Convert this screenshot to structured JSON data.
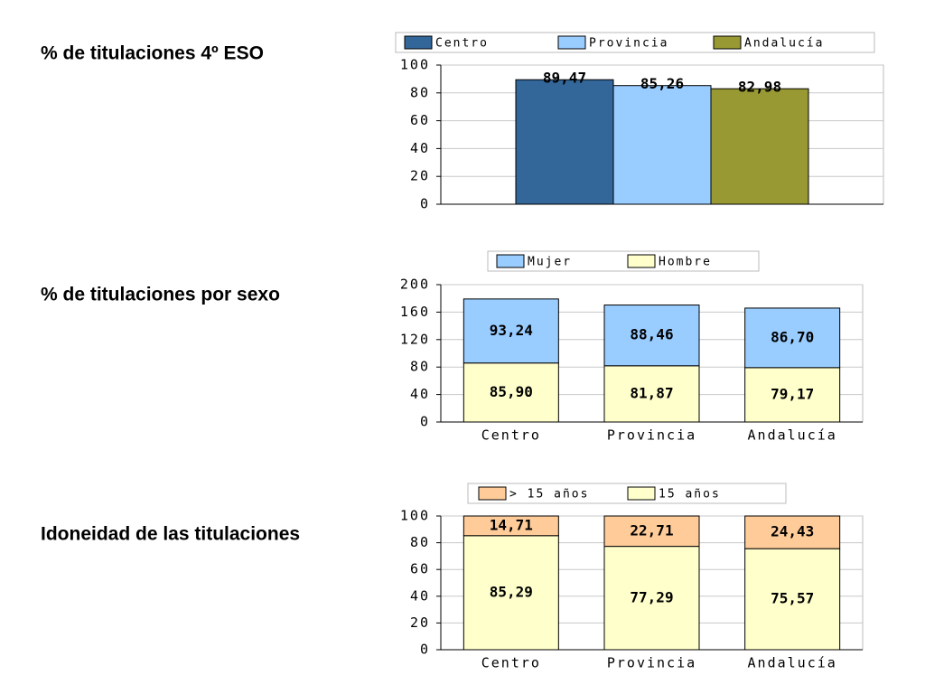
{
  "chart_data": [
    {
      "type": "bar",
      "title": "% de titulaciones 4º ESO",
      "categories": [
        null
      ],
      "series": [
        {
          "name": "Centro",
          "color": "#336699",
          "values": [
            89.47
          ],
          "value_labels": [
            "89,47"
          ]
        },
        {
          "name": "Provincia",
          "color": "#99ccff",
          "values": [
            85.26
          ],
          "value_labels": [
            "85,26"
          ]
        },
        {
          "name": "Andalucía",
          "color": "#999933",
          "values": [
            82.98
          ],
          "value_labels": [
            "82,98"
          ]
        }
      ],
      "ylim": [
        0,
        100
      ],
      "yticks": [
        0,
        20,
        40,
        60,
        80,
        100
      ],
      "grid": true,
      "legend": "top"
    },
    {
      "type": "stacked_bar",
      "title": "% de titulaciones por sexo",
      "categories": [
        "Centro",
        "Provincia",
        "Andalucía"
      ],
      "series": [
        {
          "name": "Mujer",
          "color": "#99ccff",
          "values": [
            93.24,
            88.46,
            86.7
          ],
          "value_labels": [
            "93,24",
            "88,46",
            "86,70"
          ]
        },
        {
          "name": "Hombre",
          "color": "#ffffcc",
          "values": [
            85.9,
            81.87,
            79.17
          ],
          "value_labels": [
            "85,90",
            "81,87",
            "79,17"
          ]
        }
      ],
      "ylim": [
        0,
        200
      ],
      "yticks": [
        0,
        40,
        80,
        120,
        160,
        200
      ],
      "grid": true,
      "legend": "top"
    },
    {
      "type": "stacked_bar",
      "title": "Idoneidad de las titulaciones",
      "categories": [
        "Centro",
        "Provincia",
        "Andalucía"
      ],
      "series": [
        {
          "name": "> 15 años",
          "color": "#ffcc99",
          "values": [
            14.71,
            22.71,
            24.43
          ],
          "value_labels": [
            "14,71",
            "22,71",
            "24,43"
          ]
        },
        {
          "name": "15 años",
          "color": "#ffffcc",
          "values": [
            85.29,
            77.29,
            75.57
          ],
          "value_labels": [
            "85,29",
            "77,29",
            "75,57"
          ]
        }
      ],
      "ylim": [
        0,
        100
      ],
      "yticks": [
        0,
        20,
        40,
        60,
        80,
        100
      ],
      "grid": true,
      "legend": "top"
    }
  ]
}
